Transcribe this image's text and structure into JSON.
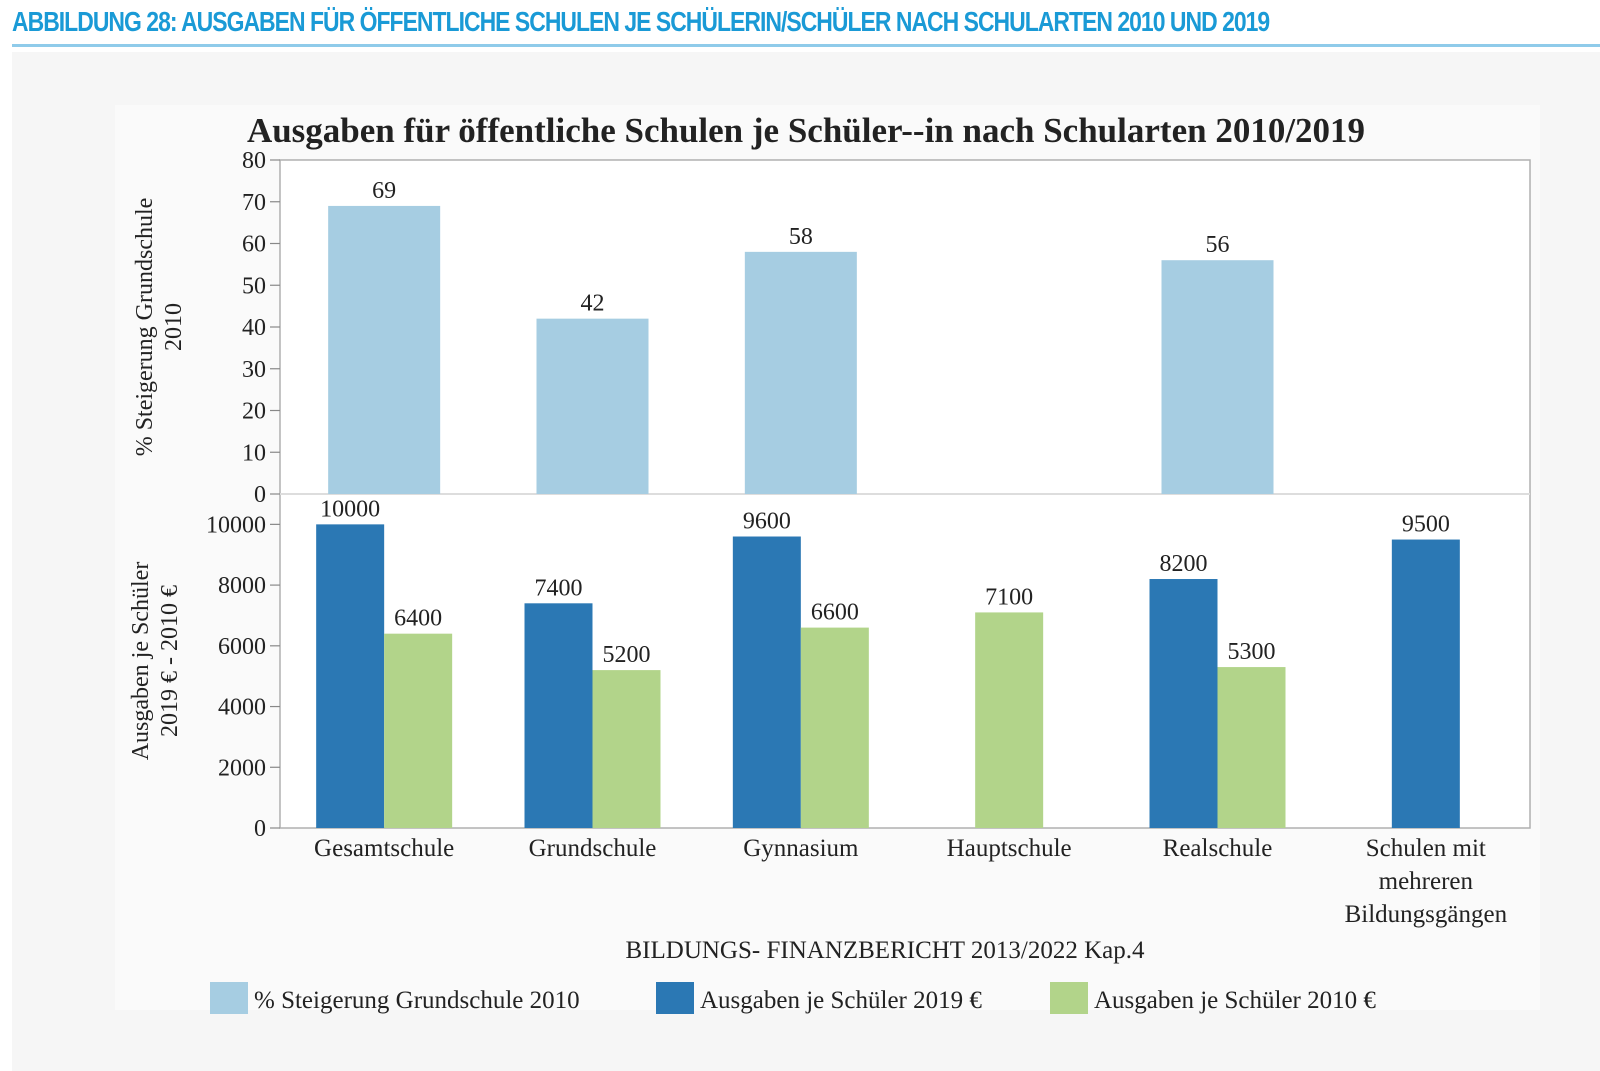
{
  "figure": {
    "heading": "ABBILDUNG 28: AUSGABEN FÜR ÖFFENTLICHE SCHULEN JE SCHÜLERIN/SCHÜLER NACH SCHULARTEN 2010 UND 2019",
    "heading_color": "#1a9ad6"
  },
  "chart_data": {
    "type": "bar",
    "title": "Ausgaben für öffentliche Schulen je Schüler--in nach Schularten 2010/2019",
    "source": "BILDUNGS- FINANZBERICHT 2013/2022 Kap.4",
    "categories": [
      "Gesamtschule",
      "Grundschule",
      "Gynnasium",
      "Hauptschule",
      "Realschule",
      "Schulen mit mehreren Bildungsgängen"
    ],
    "category_lines": [
      [
        "Gesamtschule"
      ],
      [
        "Grundschule"
      ],
      [
        "Gynnasium"
      ],
      [
        "Hauptschule"
      ],
      [
        "Realschule"
      ],
      [
        "Schulen mit",
        "mehreren",
        "Bildungsgängen"
      ]
    ],
    "panels": [
      {
        "ylabel": [
          "% Steigerung  Grundschule",
          "2010"
        ],
        "ylim": [
          0,
          80
        ],
        "yticks": [
          0,
          10,
          20,
          30,
          40,
          50,
          60,
          70,
          80
        ],
        "series": [
          {
            "name": "% Steigerung Grundschule 2010",
            "color": "#a6cde2",
            "values": [
              69,
              42,
              58,
              null,
              56,
              null
            ]
          }
        ]
      },
      {
        "ylabel": [
          "Ausgaben je Schüler",
          "2019 € - 2010 €"
        ],
        "ylim": [
          0,
          11000
        ],
        "yticks": [
          0,
          2000,
          4000,
          6000,
          8000,
          10000
        ],
        "series": [
          {
            "name": "Ausgaben je Schüler 2019 €",
            "color": "#2b78b4",
            "values": [
              10000,
              7400,
              9600,
              null,
              8200,
              9500
            ]
          },
          {
            "name": "Ausgaben je Schüler 2010 €",
            "color": "#b2d48a",
            "values": [
              6400,
              5200,
              6600,
              7100,
              5300,
              null
            ]
          }
        ]
      }
    ],
    "legend": {
      "position": "bottom",
      "entries": [
        {
          "label": "% Steigerung Grundschule 2010",
          "color": "#a6cde2"
        },
        {
          "label": "Ausgaben je Schüler 2019 €",
          "color": "#2b78b4"
        },
        {
          "label": "Ausgaben je Schüler 2010 €",
          "color": "#b2d48a"
        }
      ]
    },
    "grid": false
  }
}
